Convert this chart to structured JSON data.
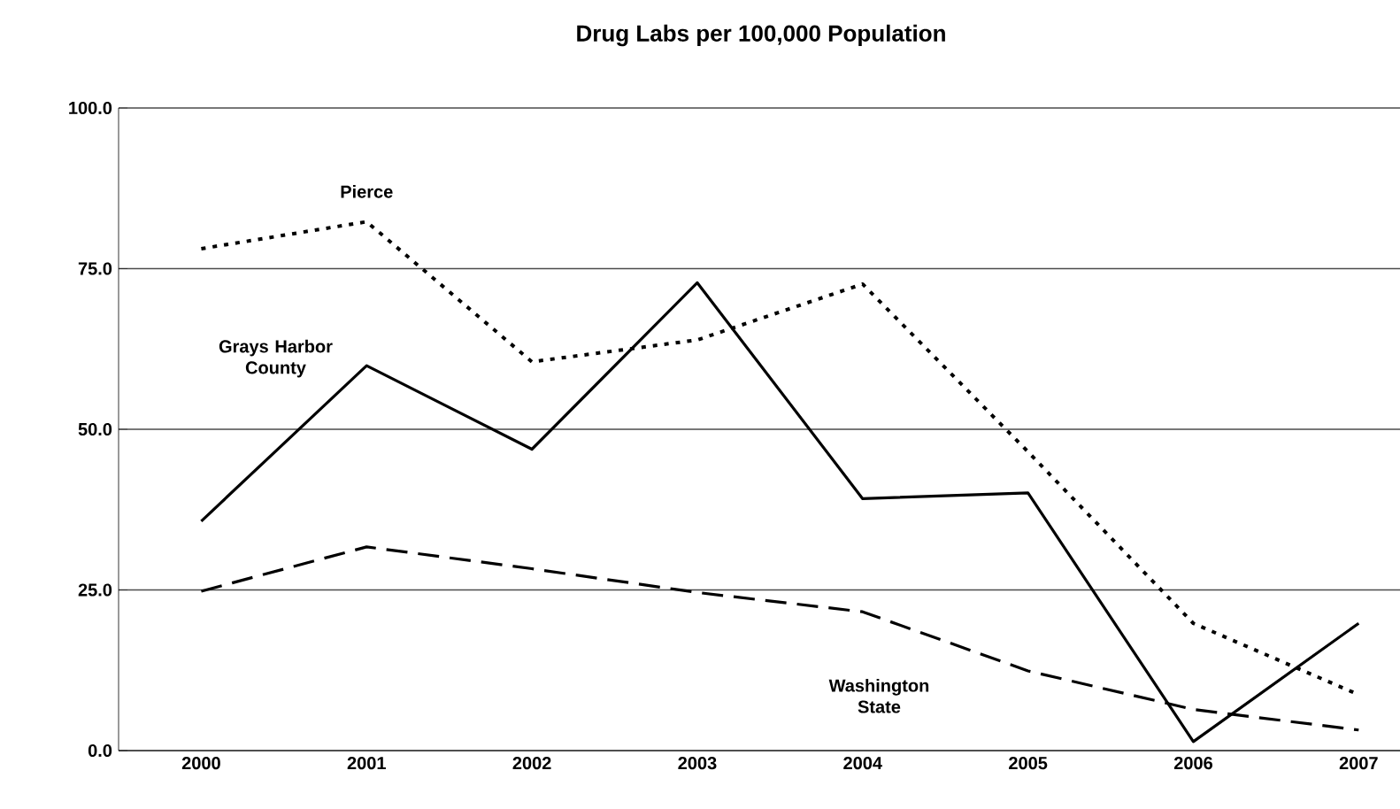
{
  "chart_data": {
    "type": "line",
    "title": "Drug Labs per 100,000 Population",
    "categories": [
      "2000",
      "2001",
      "2002",
      "2003",
      "2004",
      "2005",
      "2006",
      "2007"
    ],
    "series": [
      {
        "name": "Grays Harbor County",
        "color": "#000000",
        "line_style": "solid",
        "values": [
          35.7,
          59.9,
          46.9,
          72.8,
          39.2,
          40.1,
          1.4,
          19.8
        ]
      },
      {
        "name": "Pierce",
        "color": "#000000",
        "line_style": "dotted",
        "values": [
          78.1,
          82.3,
          60.5,
          63.9,
          72.6,
          46.5,
          19.8,
          8.7
        ]
      },
      {
        "name": "Washington State",
        "color": "#000000",
        "line_style": "dashed",
        "values": [
          24.8,
          31.7,
          28.3,
          24.6,
          21.6,
          12.4,
          6.4,
          3.2
        ]
      }
    ],
    "ylim": [
      0,
      100
    ],
    "yticks": [
      {
        "value": 0,
        "label": "0.0"
      },
      {
        "value": 25,
        "label": "25.0"
      },
      {
        "value": 50,
        "label": "50.0"
      },
      {
        "value": 75,
        "label": "75.0"
      },
      {
        "value": 100,
        "label": "100.0"
      }
    ],
    "grid": "y",
    "legend": false,
    "marker": "none"
  }
}
